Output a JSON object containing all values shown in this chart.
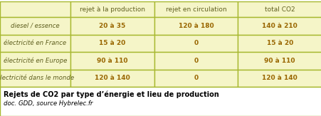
{
  "col_headers": [
    "rejet à la production",
    "rejet en circulation",
    "total CO2"
  ],
  "row_labels": [
    "diesel / essence",
    "électricité en France",
    "électricité en Europe",
    "électricité dans le monde"
  ],
  "cell_data": [
    [
      "20 à 35",
      "120 à 180",
      "140 à 210"
    ],
    [
      "15 à 20",
      "0",
      "15 à 20"
    ],
    [
      "90 à 110",
      "0",
      "90 à 110"
    ],
    [
      "120 à 140",
      "0",
      "120 à 140"
    ]
  ],
  "title": "Rejets de CO2 par type d’énergie et lieu de production",
  "subtitle": "doc. GDD, source Hybrelec.fr",
  "bg_color": "#f5f5c8",
  "border_color": "#a8b830",
  "header_font_color": "#606020",
  "cell_font_color": "#996600",
  "row_label_font_color": "#606020",
  "title_font_color": "#000000",
  "outer_bg": "#ffffff",
  "fig_width": 4.52,
  "fig_height": 1.63,
  "dpi": 100
}
